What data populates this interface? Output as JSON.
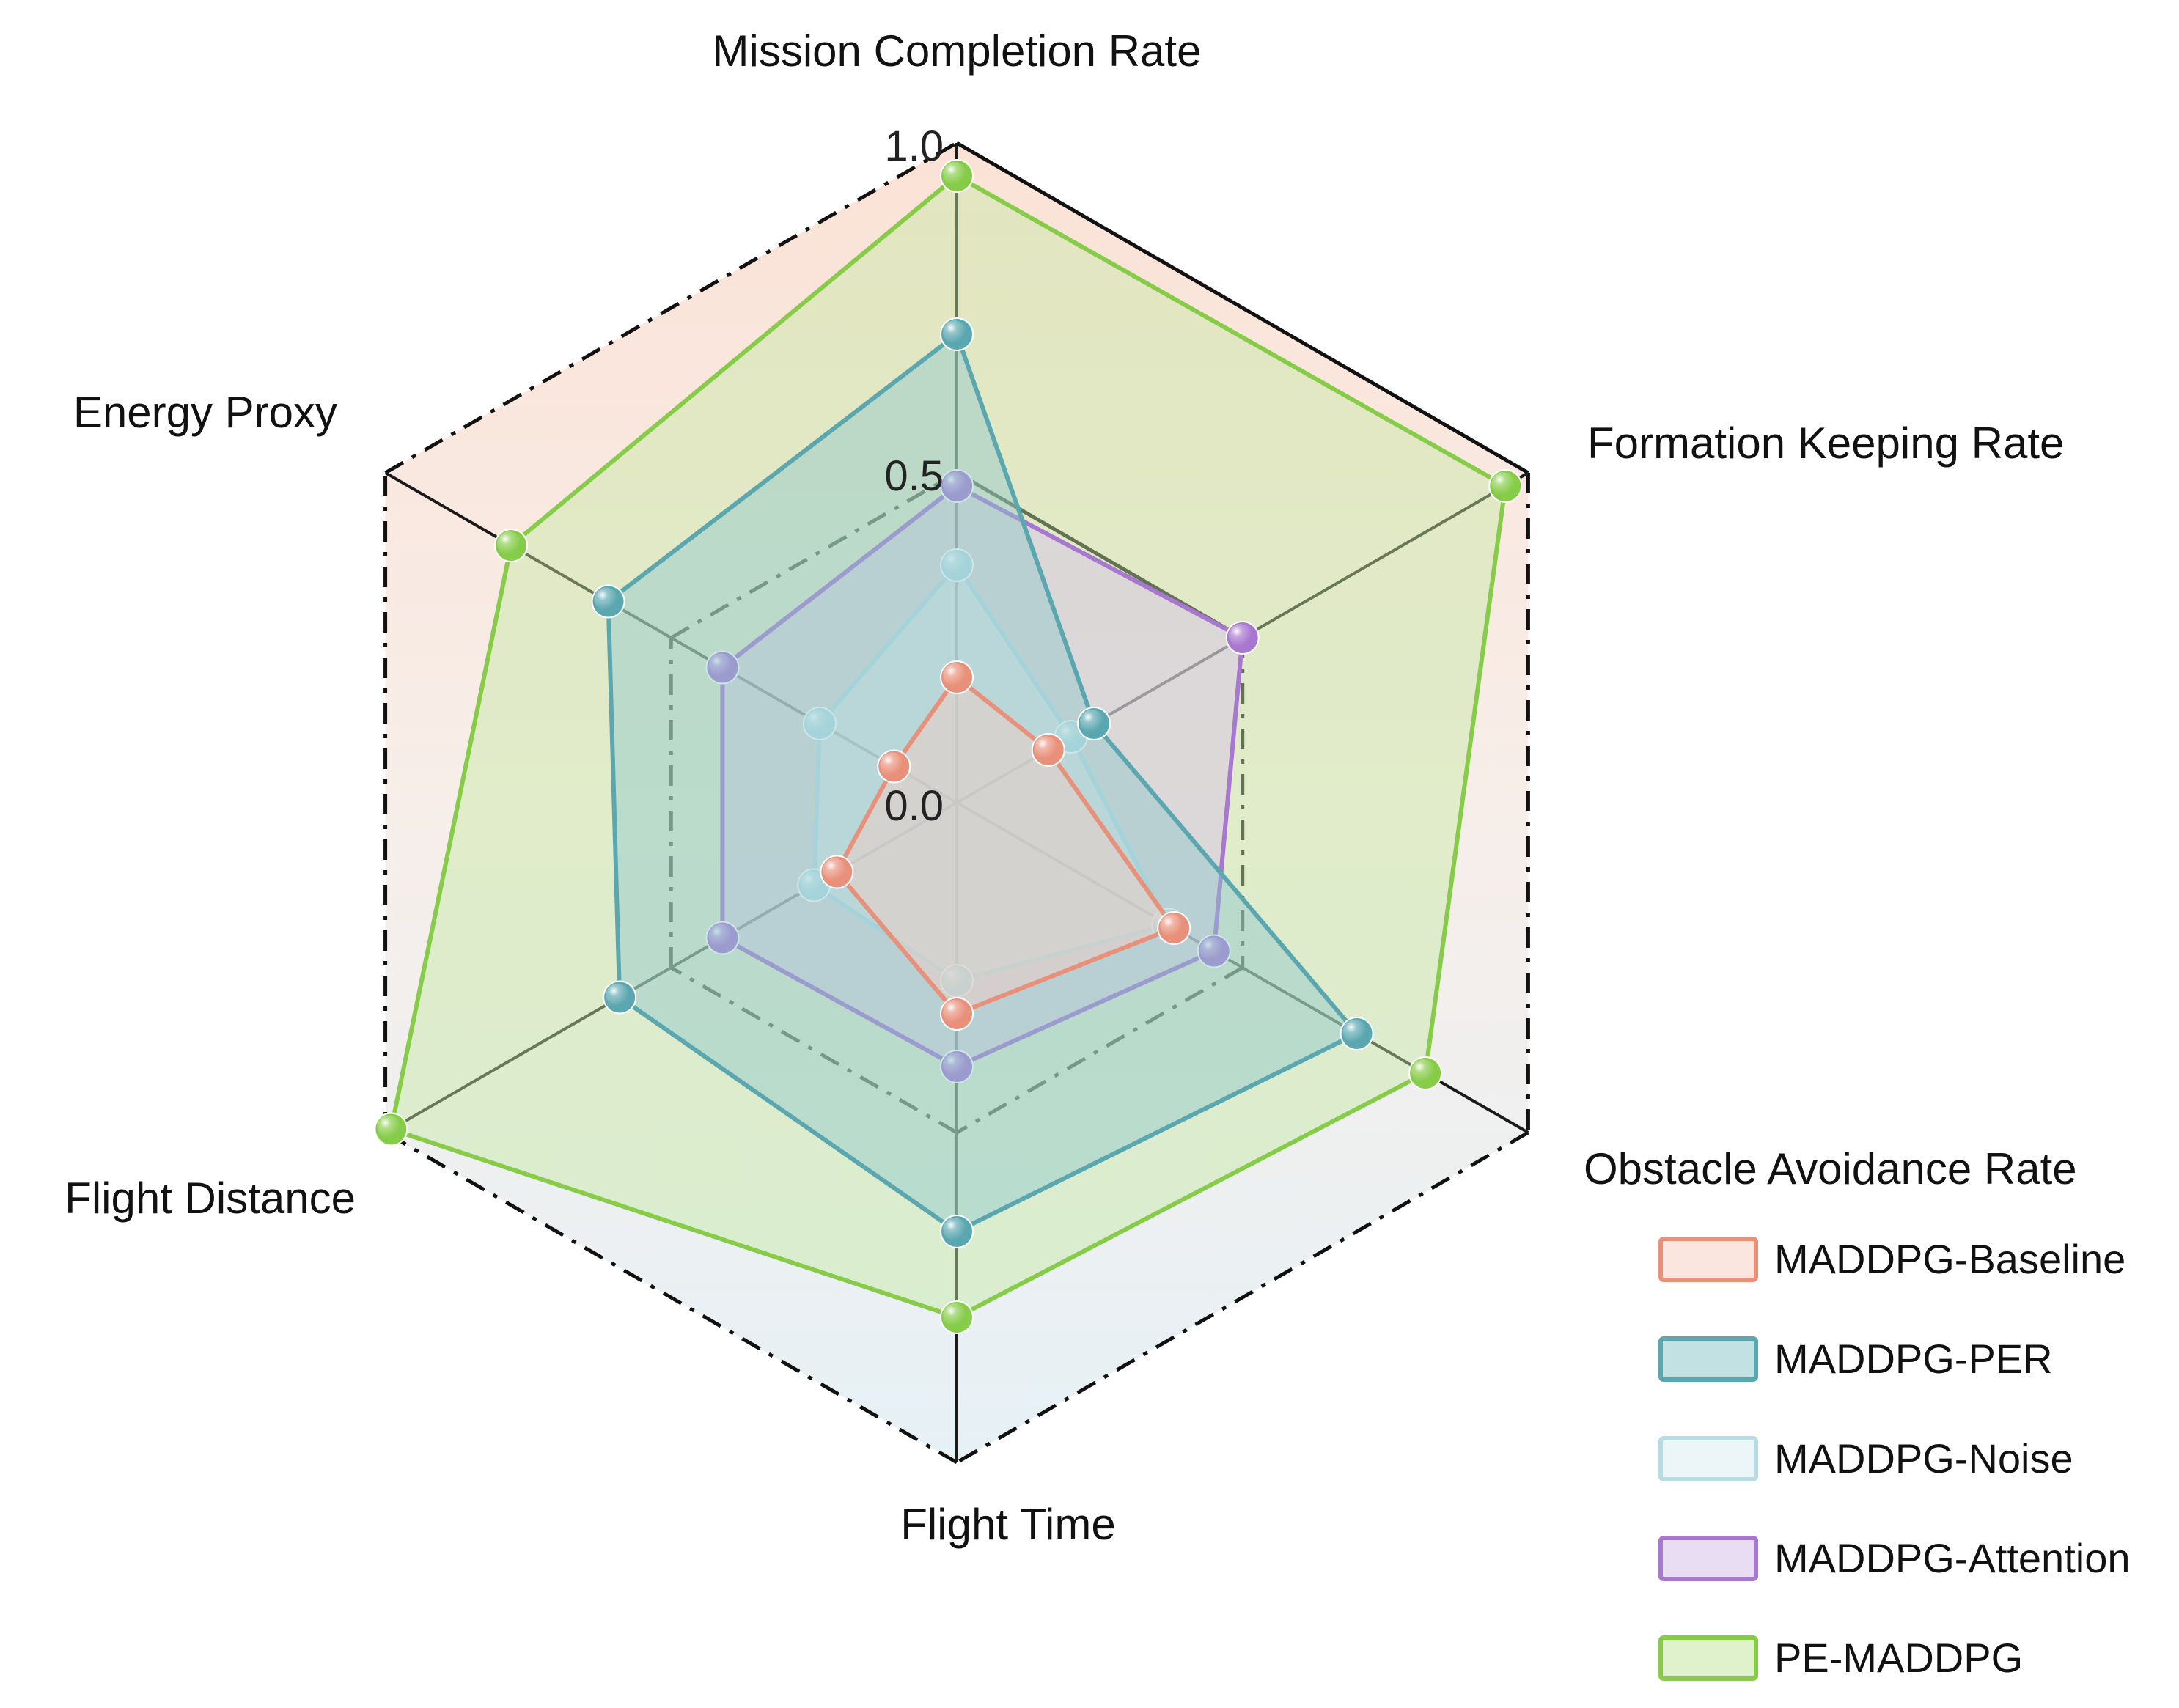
{
  "chart_data": {
    "type": "radar",
    "axes": [
      "Mission Completion Rate",
      "Formation Keeping Rate",
      "Obstacle Avoidance Rate",
      "Flight Time",
      "Flight Distance",
      "Energy Proxy"
    ],
    "range": [
      0,
      1
    ],
    "ticks": [
      "0.0",
      "0.5",
      "1.0"
    ],
    "tick_values": [
      0.0,
      0.5,
      1.0
    ],
    "grid": true,
    "legend_position": "bottom-right",
    "series": [
      {
        "name": "MADDPG-Baseline",
        "color": "#E8907A",
        "fill": "#F6CFC4",
        "values": [
          0.19,
          0.16,
          0.38,
          0.32,
          0.21,
          0.11
        ]
      },
      {
        "name": "MADDPG-PER",
        "color": "#5BA7B0",
        "fill": "#8FC8CC",
        "values": [
          0.71,
          0.24,
          0.7,
          0.65,
          0.59,
          0.61
        ]
      },
      {
        "name": "MADDPG-Noise",
        "color": "#B7DDE3",
        "fill": "#DDEFF2",
        "values": [
          0.36,
          0.2,
          0.37,
          0.27,
          0.25,
          0.24
        ]
      },
      {
        "name": "MADDPG-Attention",
        "color": "#A877D0",
        "fill": "#D7C1EA",
        "values": [
          0.48,
          0.5,
          0.45,
          0.4,
          0.41,
          0.41
        ]
      },
      {
        "name": "PE-MADDPG",
        "color": "#86CC49",
        "fill": "#C6E8A3",
        "values": [
          0.95,
          0.96,
          0.82,
          0.78,
          0.99,
          0.78
        ]
      }
    ]
  }
}
